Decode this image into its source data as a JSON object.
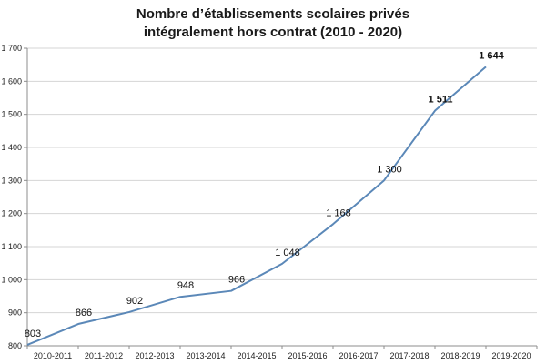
{
  "chart_data": {
    "type": "line",
    "title_line1": "Nombre d’établissements scolaires privés",
    "title_line2": "intégralement hors contrat (2010 - 2020)",
    "xlabel": "",
    "ylabel": "",
    "categories": [
      "2010-2011",
      "2011-2012",
      "2012-2013",
      "2013-2014",
      "2014-2015",
      "2015-2016",
      "2016-2017",
      "2017-2018",
      "2018-2019",
      "2019-2020"
    ],
    "values": [
      803,
      866,
      902,
      948,
      966,
      1048,
      1168,
      1300,
      1511,
      1644
    ],
    "value_labels": [
      "803",
      "866",
      "902",
      "948",
      "966",
      "1 048",
      "1 168",
      "1 300",
      "1 511",
      "1 644"
    ],
    "bold_labels": [
      false,
      false,
      false,
      false,
      false,
      false,
      false,
      false,
      true,
      true
    ],
    "ylim": [
      800,
      1700
    ],
    "yticks": [
      800,
      900,
      1000,
      1100,
      1200,
      1300,
      1400,
      1500,
      1600,
      1700
    ],
    "ytick_labels": [
      "800",
      "900",
      "1 000",
      "1 100",
      "1 200",
      "1 300",
      "1 400",
      "1 500",
      "1 600",
      "1 700"
    ],
    "grid": true,
    "line_color": "#5b88b8",
    "grid_color": "#d4d4d4",
    "axis_color": "#8c8c8c"
  }
}
